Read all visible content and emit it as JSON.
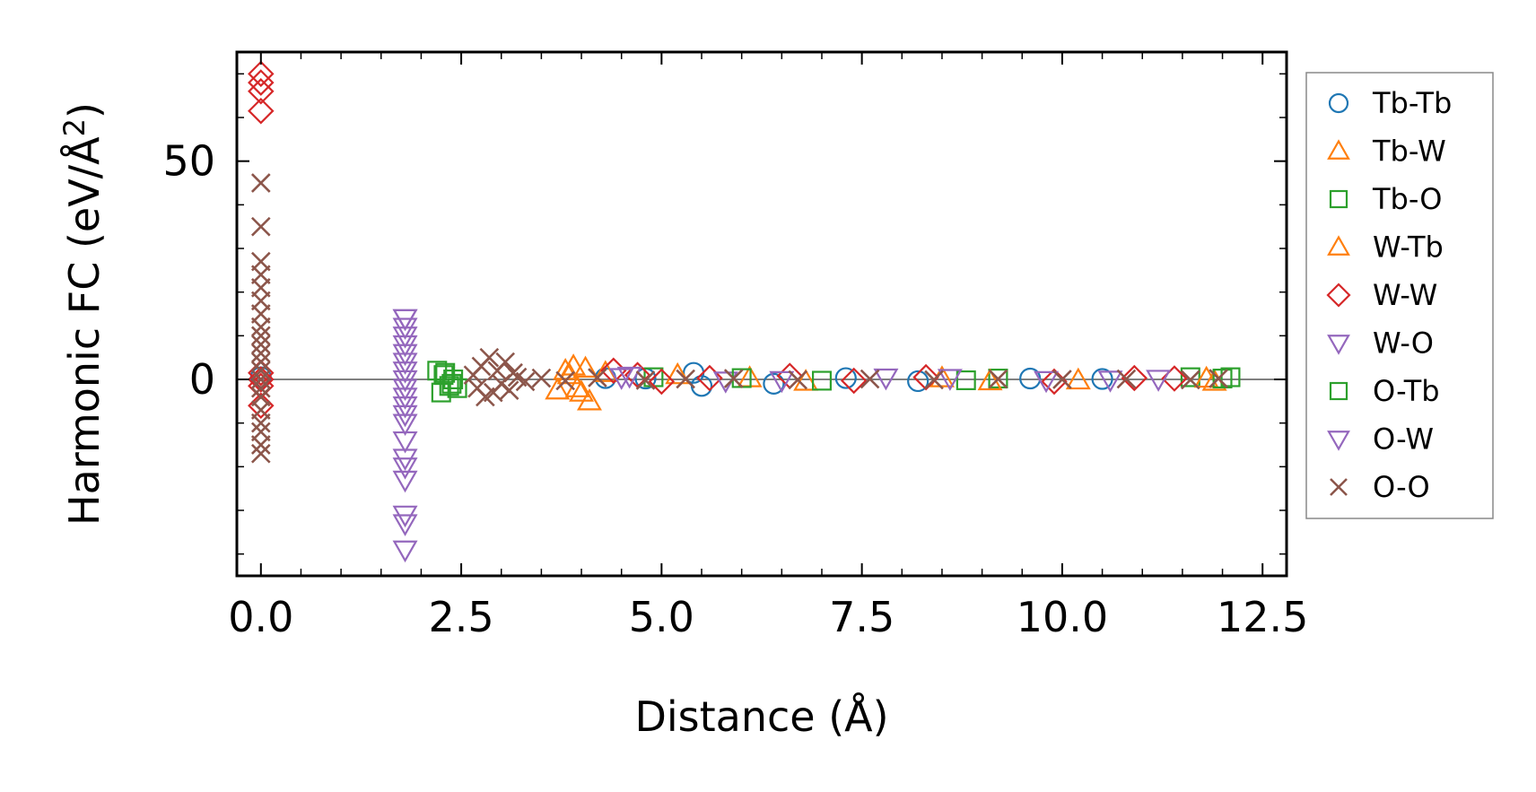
{
  "chart_data": {
    "type": "scatter",
    "title": "",
    "xlabel": "Distance (Å)",
    "ylabel_prefix": "Harmonic FC (eV/Å",
    "ylabel_sup": "2",
    "ylabel_suffix": ")",
    "xlim": [
      -0.3,
      12.8
    ],
    "ylim": [
      -45,
      75
    ],
    "xticks": [
      0.0,
      2.5,
      5.0,
      7.5,
      10.0,
      12.5
    ],
    "xtick_labels": [
      "0.0",
      "2.5",
      "5.0",
      "7.5",
      "10.0",
      "12.5"
    ],
    "yticks": [
      0,
      50
    ],
    "ytick_labels": [
      "0",
      "50"
    ],
    "x_minor_step": 0.5,
    "y_minor_step": 10,
    "zero_line": true,
    "legend_position": "outside-right",
    "series": [
      {
        "name": "Tb-Tb",
        "marker": "circle",
        "color": "#1f77b4",
        "filled": false,
        "x": [
          0.0,
          4.3,
          4.8,
          5.4,
          5.5,
          6.4,
          7.3,
          8.2,
          9.6,
          10.5
        ],
        "y": [
          0.5,
          0.3,
          0.2,
          1.5,
          -1.5,
          -1.0,
          0.3,
          -0.4,
          0.2,
          0.1
        ]
      },
      {
        "name": "Tb-W",
        "marker": "triangle-up",
        "color": "#ff7f0e",
        "filled": false,
        "x": [
          3.7,
          3.8,
          3.9,
          4.0,
          4.1,
          4.3,
          5.2,
          6.8,
          8.5,
          10.2,
          11.9
        ],
        "y": [
          -2.5,
          2.0,
          3.0,
          -3.0,
          -5.0,
          1.5,
          1.0,
          -0.5,
          0.3,
          -0.2,
          -0.5
        ]
      },
      {
        "name": "Tb-O",
        "marker": "square",
        "color": "#2ca02c",
        "filled": false,
        "x": [
          2.2,
          2.25,
          2.3,
          2.35,
          2.4,
          2.45,
          4.9,
          7.0,
          9.2,
          11.6,
          12.1
        ],
        "y": [
          2.0,
          -3.0,
          1.5,
          -1.5,
          0.0,
          -2.0,
          0.5,
          -0.3,
          0.2,
          0.5,
          0.5
        ]
      },
      {
        "name": "W-Tb",
        "marker": "triangle-up",
        "color": "#ff7f0e",
        "filled": false,
        "x": [
          3.85,
          3.95,
          4.05,
          6.1,
          9.1,
          11.8
        ],
        "y": [
          1.0,
          -2.0,
          2.5,
          0.3,
          -0.4,
          0.2
        ]
      },
      {
        "name": "W-W",
        "marker": "diamond",
        "color": "#d62728",
        "filled": false,
        "x": [
          0.0,
          0.0,
          0.0,
          0.0,
          0.0,
          0.0,
          0.0,
          0.0,
          4.4,
          4.7,
          5.0,
          5.6,
          6.6,
          7.4,
          8.3,
          9.9,
          10.9,
          11.4
        ],
        "y": [
          70,
          68,
          66,
          61.5,
          1.5,
          0.0,
          -1.5,
          -6.0,
          2.0,
          1.0,
          -0.5,
          0.3,
          0.8,
          -0.3,
          0.5,
          -0.5,
          0.3,
          0.2
        ]
      },
      {
        "name": "W-O",
        "marker": "triangle-down",
        "color": "#9467bd",
        "filled": false,
        "x": [
          1.8,
          1.8,
          1.8,
          1.8,
          1.8,
          1.8,
          1.8,
          1.8,
          1.8,
          1.8,
          1.8,
          1.8,
          1.8,
          1.8,
          4.5,
          5.8,
          7.8,
          9.8,
          11.2
        ],
        "y": [
          14,
          12,
          10,
          6,
          2,
          -2,
          -6,
          -10,
          -14,
          -18,
          -20,
          -23,
          -31,
          -39,
          0.5,
          -0.3,
          0.4,
          -0.2,
          0.1
        ]
      },
      {
        "name": "O-Tb",
        "marker": "square",
        "color": "#2ca02c",
        "filled": false,
        "x": [
          2.28,
          2.38,
          6.0,
          8.8,
          12.0
        ],
        "y": [
          1.0,
          -1.0,
          0.3,
          -0.2,
          0.2
        ]
      },
      {
        "name": "O-W",
        "marker": "triangle-down",
        "color": "#9467bd",
        "filled": false,
        "x": [
          1.8,
          1.8,
          1.8,
          1.8,
          1.8,
          1.8,
          1.8,
          4.6,
          6.5,
          8.6,
          10.6
        ],
        "y": [
          14,
          8,
          4,
          0,
          -4,
          -8,
          -33,
          0.8,
          -0.2,
          0.3,
          -0.1
        ]
      },
      {
        "name": "O-O",
        "marker": "x",
        "color": "#8c564b",
        "filled": false,
        "x": [
          0.0,
          0.0,
          0.0,
          0.0,
          0.0,
          0.0,
          0.0,
          0.0,
          0.0,
          0.0,
          0.0,
          0.0,
          0.0,
          0.0,
          0.0,
          0.0,
          0.0,
          0.0,
          0.0,
          0.0,
          0.0,
          2.65,
          2.7,
          2.75,
          2.8,
          2.85,
          2.9,
          2.95,
          3.0,
          3.05,
          3.1,
          3.15,
          3.2,
          3.3,
          3.5,
          3.8,
          4.2,
          4.8,
          5.3,
          5.9,
          6.7,
          7.6,
          8.4,
          9.2,
          10.0,
          10.8,
          11.6,
          11.95
        ],
        "y": [
          45,
          35,
          27,
          24,
          21,
          18,
          15,
          12,
          10,
          8,
          6,
          4,
          2,
          0,
          -2,
          -4,
          -7,
          -10,
          -12,
          -15,
          -17,
          1.0,
          -2.0,
          3.0,
          -4.0,
          5.0,
          -3.0,
          2.0,
          -1.0,
          4.0,
          -2.5,
          1.5,
          0.5,
          -0.5,
          0.3,
          -0.3,
          0.4,
          -0.2,
          0.1,
          0.2,
          -0.1,
          0.1,
          -0.1,
          0.1,
          0.0,
          0.1,
          -0.1,
          0.2
        ]
      }
    ]
  }
}
